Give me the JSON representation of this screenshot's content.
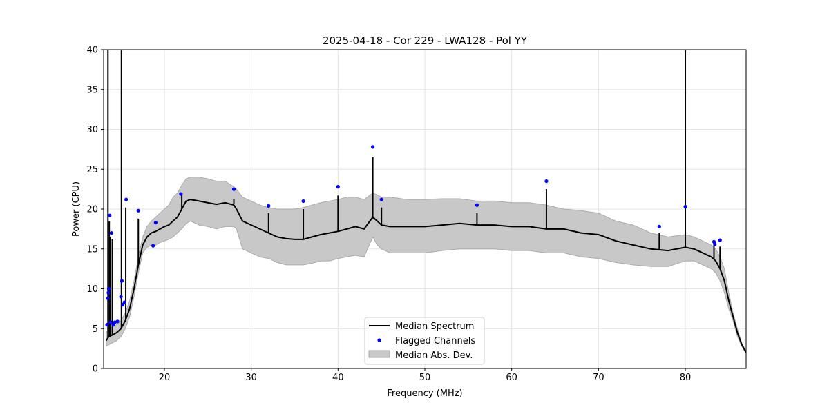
{
  "chart_data": {
    "type": "line",
    "title": "2025-04-18 - Cor 229 - LWA128 - Pol YY",
    "xlabel": "Frequency (MHz)",
    "ylabel": "Power (CPU)",
    "xlim": [
      13,
      87
    ],
    "ylim": [
      0,
      40
    ],
    "xticks": [
      20,
      30,
      40,
      50,
      60,
      70,
      80
    ],
    "yticks": [
      0,
      5,
      10,
      15,
      20,
      25,
      30,
      35,
      40
    ],
    "xtick_labels": [
      "20",
      "30",
      "40",
      "50",
      "60",
      "70",
      "80"
    ],
    "ytick_labels": [
      "0",
      "5",
      "10",
      "15",
      "20",
      "25",
      "30",
      "35",
      "40"
    ],
    "grid": true,
    "legend_position": "lower-center",
    "legend": [
      {
        "label": "Median Spectrum",
        "kind": "line",
        "color": "#000000"
      },
      {
        "label": "Flagged Channels",
        "kind": "marker",
        "color": "#0000ff"
      },
      {
        "label": "Median Abs. Dev.",
        "kind": "patch",
        "color": "#c8c8c8"
      }
    ],
    "series": [
      {
        "name": "Median Spectrum",
        "x": [
          13.3,
          13.6,
          14.0,
          14.5,
          15.0,
          15.5,
          16.0,
          16.5,
          17.0,
          17.5,
          18.0,
          18.5,
          19.0,
          19.5,
          20.0,
          20.5,
          21.0,
          21.5,
          22.0,
          22.5,
          23.0,
          24.0,
          25.0,
          26.0,
          27.0,
          28.0,
          28.3,
          29.0,
          30.0,
          31.0,
          32.0,
          33.0,
          34.0,
          35.0,
          36.0,
          37.0,
          38.0,
          39.0,
          40.0,
          41.0,
          42.0,
          43.0,
          44.0,
          44.5,
          45.0,
          46.0,
          48.0,
          50.0,
          52.0,
          54.0,
          56.0,
          58.0,
          60.0,
          62.0,
          64.0,
          66.0,
          68.0,
          70.0,
          72.0,
          74.0,
          76.0,
          78.0,
          80.0,
          81.0,
          82.0,
          83.0,
          83.5,
          84.0,
          84.5,
          85.0,
          85.5,
          86.0,
          86.5,
          87.0
        ],
        "y": [
          3.5,
          4.0,
          4.2,
          4.5,
          5.0,
          6.0,
          7.5,
          10.0,
          13.0,
          15.5,
          16.5,
          17.0,
          17.2,
          17.5,
          17.8,
          18.0,
          18.5,
          19.0,
          20.0,
          21.0,
          21.2,
          21.0,
          20.8,
          20.6,
          20.8,
          20.5,
          20.0,
          18.5,
          18.0,
          17.5,
          17.0,
          16.5,
          16.3,
          16.2,
          16.2,
          16.5,
          16.8,
          17.0,
          17.2,
          17.5,
          17.8,
          17.5,
          19.0,
          18.5,
          18.0,
          17.8,
          17.8,
          17.8,
          18.0,
          18.2,
          18.0,
          18.0,
          17.8,
          17.8,
          17.5,
          17.5,
          17.0,
          16.8,
          16.0,
          15.5,
          15.0,
          14.8,
          15.2,
          15.0,
          14.5,
          14.0,
          13.5,
          12.5,
          11.0,
          8.5,
          6.5,
          4.5,
          3.0,
          2.0
        ]
      },
      {
        "name": "Median Abs. Dev.",
        "x": [
          13.3,
          13.6,
          14.0,
          14.5,
          15.0,
          15.5,
          16.0,
          16.5,
          17.0,
          17.5,
          18.0,
          18.5,
          19.0,
          19.5,
          20.0,
          20.5,
          21.0,
          21.5,
          22.0,
          22.5,
          23.0,
          24.0,
          25.0,
          26.0,
          27.0,
          28.0,
          28.3,
          29.0,
          30.0,
          31.0,
          32.0,
          33.0,
          34.0,
          35.0,
          36.0,
          37.0,
          38.0,
          39.0,
          40.0,
          41.0,
          42.0,
          43.0,
          44.0,
          44.5,
          45.0,
          46.0,
          48.0,
          50.0,
          52.0,
          54.0,
          56.0,
          58.0,
          60.0,
          62.0,
          64.0,
          66.0,
          68.0,
          70.0,
          72.0,
          74.0,
          76.0,
          78.0,
          80.0,
          81.0,
          82.0,
          83.0,
          83.5,
          84.0,
          84.5,
          85.0,
          85.5,
          86.0,
          86.5,
          87.0
        ],
        "upper": [
          4.5,
          5.0,
          5.2,
          5.5,
          6.0,
          7.0,
          8.5,
          11.0,
          14.0,
          16.5,
          17.8,
          18.5,
          19.0,
          19.5,
          20.0,
          20.5,
          21.5,
          22.0,
          23.0,
          23.8,
          24.0,
          24.0,
          23.8,
          23.5,
          23.5,
          22.8,
          22.5,
          21.5,
          21.0,
          20.5,
          20.2,
          20.0,
          20.0,
          20.0,
          20.2,
          20.5,
          20.8,
          21.0,
          21.2,
          21.5,
          21.5,
          21.2,
          22.0,
          21.8,
          21.5,
          21.5,
          21.2,
          21.2,
          21.3,
          21.3,
          21.0,
          21.0,
          20.8,
          20.8,
          20.5,
          20.0,
          19.8,
          19.5,
          18.5,
          18.0,
          17.0,
          16.5,
          16.8,
          16.5,
          16.0,
          15.5,
          15.0,
          14.0,
          12.5,
          9.5,
          7.0,
          5.0,
          3.2,
          2.2
        ],
        "lower": [
          2.8,
          3.0,
          3.2,
          3.5,
          4.0,
          5.0,
          6.5,
          9.0,
          12.0,
          14.5,
          15.2,
          15.5,
          15.5,
          15.8,
          16.0,
          16.2,
          16.5,
          17.0,
          17.5,
          18.2,
          18.5,
          18.0,
          17.8,
          17.5,
          17.8,
          17.8,
          17.5,
          15.0,
          14.5,
          14.0,
          13.8,
          13.3,
          13.0,
          13.0,
          13.0,
          13.2,
          13.5,
          13.5,
          13.8,
          14.0,
          14.2,
          14.0,
          16.5,
          15.5,
          15.0,
          14.5,
          14.5,
          14.5,
          14.8,
          15.0,
          15.0,
          15.0,
          14.8,
          14.8,
          14.5,
          14.5,
          14.0,
          13.8,
          13.3,
          13.0,
          12.8,
          12.8,
          13.5,
          13.5,
          13.0,
          12.5,
          12.0,
          11.0,
          9.5,
          7.5,
          6.0,
          4.0,
          2.8,
          1.9
        ]
      },
      {
        "name": "Flagged Channels",
        "x": [
          13.4,
          13.5,
          13.55,
          13.6,
          13.7,
          13.8,
          13.9,
          14.1,
          14.3,
          14.6,
          15.0,
          15.1,
          15.2,
          15.4,
          15.6,
          17.0,
          18.7,
          19.0,
          21.9,
          28.0,
          32.0,
          36.0,
          40.0,
          44.0,
          45.0,
          56.0,
          64.0,
          77.0,
          80.0,
          83.3,
          83.4,
          84.0
        ],
        "y": [
          5.5,
          8.8,
          9.5,
          10.0,
          19.2,
          5.8,
          17.0,
          5.5,
          5.8,
          5.9,
          9.0,
          11.0,
          8.0,
          8.3,
          21.2,
          19.8,
          15.4,
          18.3,
          21.9,
          22.5,
          20.4,
          21.0,
          22.8,
          27.8,
          21.2,
          20.5,
          23.5,
          17.8,
          20.3,
          15.9,
          15.6,
          16.1
        ]
      },
      {
        "name": "Spikes",
        "x": [
          13.5,
          13.65,
          13.75,
          14.0,
          15.05,
          15.55,
          17.0,
          22.0,
          28.0,
          32.0,
          36.0,
          40.0,
          44.0,
          45.0,
          56.0,
          64.0,
          77.0,
          80.0,
          83.3,
          84.0
        ],
        "base": [
          3.8,
          4.0,
          4.0,
          4.2,
          5.0,
          6.0,
          13.0,
          20.0,
          20.6,
          17.0,
          16.2,
          17.2,
          18.8,
          18.0,
          18.0,
          17.5,
          14.8,
          15.2,
          13.8,
          12.5
        ],
        "top": [
          40,
          18.5,
          16.5,
          16.2,
          40,
          20.2,
          18.8,
          22.0,
          21.3,
          19.5,
          20.0,
          21.7,
          26.5,
          20.2,
          19.5,
          22.5,
          17.0,
          40,
          15.8,
          15.3
        ]
      }
    ]
  }
}
